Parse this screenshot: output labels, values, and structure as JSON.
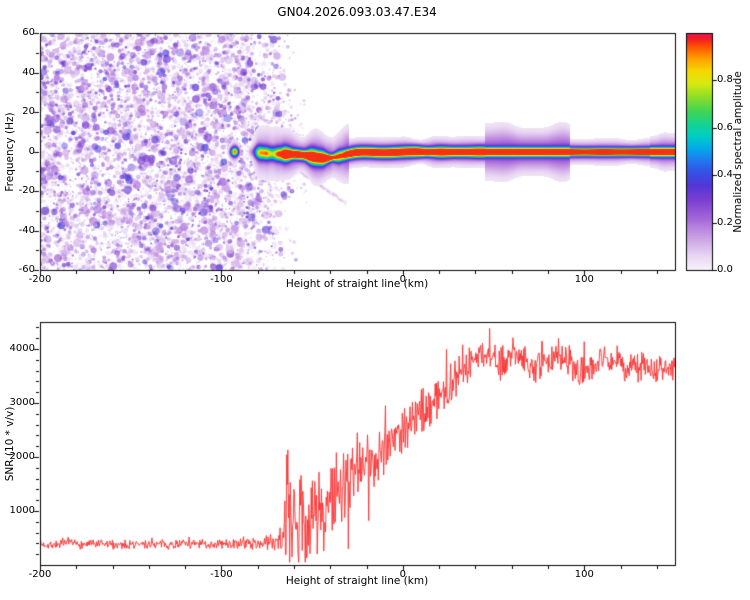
{
  "chart_data": [
    {
      "type": "heatmap",
      "title": "GN04.2026.093.03.47.E34",
      "xlabel": "Height of straight line (km)",
      "ylabel": "Frequency (Hz)",
      "xlim": [
        -200,
        150
      ],
      "ylim": [
        -60,
        60
      ],
      "xticks": [
        -200,
        -100,
        0,
        100
      ],
      "xtick_labels": [
        "-200",
        "-100",
        "0",
        "100"
      ],
      "yticks": [
        60,
        40,
        20,
        0,
        -20,
        -40,
        -60
      ],
      "ytick_labels": [
        "60",
        "40",
        "20",
        "0",
        "-20",
        "-40",
        "-60"
      ],
      "x_minor_step": 20,
      "y_minor_step": 10,
      "grid": false,
      "seed": 42,
      "colorbar": {
        "label": "Normalized spectral amplitude",
        "range": [
          0,
          1
        ],
        "ticks": [
          0.0,
          0.2,
          0.4,
          0.6,
          0.8
        ],
        "tick_labels": [
          "0.0",
          "0.2",
          "0.4",
          "0.6",
          "0.8"
        ],
        "colormap_stops": [
          [
            0.0,
            "#f8f3fb"
          ],
          [
            0.06,
            "#e9d7f3"
          ],
          [
            0.14,
            "#caa0e4"
          ],
          [
            0.22,
            "#a366d8"
          ],
          [
            0.3,
            "#7a3ed2"
          ],
          [
            0.36,
            "#5336d8"
          ],
          [
            0.42,
            "#3355e6"
          ],
          [
            0.47,
            "#1e7df0"
          ],
          [
            0.52,
            "#00aee8"
          ],
          [
            0.57,
            "#00cfc0"
          ],
          [
            0.62,
            "#17d290"
          ],
          [
            0.67,
            "#3fd455"
          ],
          [
            0.73,
            "#8ade2a"
          ],
          [
            0.79,
            "#d8ea12"
          ],
          [
            0.84,
            "#f5d800"
          ],
          [
            0.89,
            "#ffa400"
          ],
          [
            0.94,
            "#ff5a00"
          ],
          [
            0.975,
            "#f21f1f"
          ],
          [
            1.0,
            "#e81458"
          ]
        ]
      },
      "noise_region": {
        "description": "broadband purple speckle noise filling all frequencies at low heights, fading out near -70 km",
        "x_range": [
          -201,
          -58
        ],
        "fade_start": -86,
        "freq_range": [
          -60,
          60
        ],
        "dot_count": 8000,
        "blob_count": 700,
        "amplitude_range": [
          0.05,
          0.35
        ]
      },
      "signal_trace": {
        "description": "narrow horizontal echo band near 0 Hz from about -93 km to 150 km; red/orange core, green-cyan body, purple halo; blobby and slightly dipping to -3 Hz between -60 and -30 km; halo widens around 50-90 km",
        "onset_blob_x": -93,
        "continuous_from_x": -86,
        "center_freq": 0,
        "max_amplitude": 1.0
      },
      "diagonal_streak": {
        "description": "faint purple streak descending to the right below the main band",
        "from": [
          -68,
          -2.5
        ],
        "to": [
          -31,
          -26.5
        ],
        "amplitude": 0.15
      }
    },
    {
      "type": "line",
      "xlabel": "Height of straight line (km)",
      "ylabel": "SNR (10 * v/v)",
      "color": "#f93030",
      "xlim": [
        -200,
        150
      ],
      "ylim": [
        0,
        4500
      ],
      "xticks": [
        -200,
        -100,
        0,
        100
      ],
      "xtick_labels": [
        "-200",
        "-100",
        "0",
        "100"
      ],
      "yticks": [
        1000,
        2000,
        3000,
        4000
      ],
      "ytick_labels": [
        "1000",
        "2000",
        "3000",
        "4000"
      ],
      "x_minor_step": 20,
      "y_minor_step": 200,
      "grid": false,
      "seed": 7,
      "envelope_note": "each entry is [height_km, mean_SNR, noise_amplitude]; noisy red trace fluctuates about the mean",
      "envelope": [
        [
          -200,
          380,
          90
        ],
        [
          -150,
          380,
          90
        ],
        [
          -110,
          385,
          95
        ],
        [
          -90,
          390,
          100
        ],
        [
          -80,
          395,
          110
        ],
        [
          -74,
          420,
          140
        ],
        [
          -70,
          470,
          220
        ],
        [
          -67,
          560,
          420
        ],
        [
          -64,
          750,
          900
        ],
        [
          -61,
          650,
          850
        ],
        [
          -58,
          720,
          900
        ],
        [
          -55,
          780,
          900
        ],
        [
          -52,
          820,
          880
        ],
        [
          -49,
          880,
          850
        ],
        [
          -46,
          950,
          820
        ],
        [
          -43,
          1050,
          800
        ],
        [
          -40,
          1150,
          780
        ],
        [
          -37,
          1250,
          750
        ],
        [
          -34,
          1350,
          720
        ],
        [
          -31,
          1450,
          700
        ],
        [
          -28,
          1550,
          680
        ],
        [
          -25,
          1650,
          650
        ],
        [
          -22,
          1750,
          620
        ],
        [
          -19,
          1900,
          600
        ],
        [
          -16,
          2000,
          580
        ],
        [
          -13,
          2100,
          550
        ],
        [
          -10,
          2200,
          530
        ],
        [
          -7,
          2300,
          510
        ],
        [
          -4,
          2400,
          490
        ],
        [
          -1,
          2500,
          470
        ],
        [
          2,
          2600,
          460
        ],
        [
          5,
          2680,
          450
        ],
        [
          8,
          2760,
          440
        ],
        [
          11,
          2850,
          430
        ],
        [
          14,
          2950,
          420
        ],
        [
          17,
          3050,
          410
        ],
        [
          20,
          3150,
          400
        ],
        [
          23,
          3250,
          390
        ],
        [
          26,
          3350,
          380
        ],
        [
          29,
          3450,
          370
        ],
        [
          32,
          3550,
          360
        ],
        [
          35,
          3650,
          350
        ],
        [
          38,
          3750,
          340
        ],
        [
          41,
          3850,
          320
        ],
        [
          44,
          3920,
          300
        ],
        [
          47,
          3880,
          300
        ],
        [
          50,
          3820,
          310
        ],
        [
          53,
          3680,
          320
        ],
        [
          56,
          3800,
          300
        ],
        [
          59,
          3920,
          290
        ],
        [
          62,
          3960,
          280
        ],
        [
          65,
          3900,
          280
        ],
        [
          68,
          3820,
          280
        ],
        [
          71,
          3700,
          290
        ],
        [
          74,
          3620,
          290
        ],
        [
          77,
          3680,
          280
        ],
        [
          80,
          3790,
          270
        ],
        [
          83,
          3870,
          260
        ],
        [
          86,
          3900,
          260
        ],
        [
          89,
          3820,
          270
        ],
        [
          92,
          3720,
          280
        ],
        [
          95,
          3620,
          280
        ],
        [
          98,
          3560,
          290
        ],
        [
          101,
          3620,
          280
        ],
        [
          104,
          3700,
          270
        ],
        [
          107,
          3790,
          260
        ],
        [
          110,
          3850,
          260
        ],
        [
          113,
          3830,
          260
        ],
        [
          116,
          3780,
          270
        ],
        [
          119,
          3700,
          270
        ],
        [
          122,
          3650,
          280
        ],
        [
          125,
          3600,
          280
        ],
        [
          128,
          3620,
          280
        ],
        [
          131,
          3680,
          270
        ],
        [
          134,
          3720,
          260
        ],
        [
          137,
          3660,
          270
        ],
        [
          140,
          3600,
          270
        ],
        [
          143,
          3640,
          260
        ],
        [
          146,
          3660,
          260
        ],
        [
          150,
          3600,
          260
        ]
      ],
      "spikes": [
        [
          -63.4,
          2130
        ],
        [
          -60.9,
          150
        ],
        [
          -56.2,
          1660
        ],
        [
          -53.0,
          130
        ],
        [
          -49.8,
          1560
        ],
        [
          -46.3,
          1720
        ],
        [
          -43.5,
          260
        ],
        [
          -36.5,
          2080
        ],
        [
          -30.2,
          300
        ],
        [
          -25.0,
          2450
        ],
        [
          -18.7,
          820
        ],
        [
          -9.5,
          2950
        ]
      ]
    }
  ]
}
